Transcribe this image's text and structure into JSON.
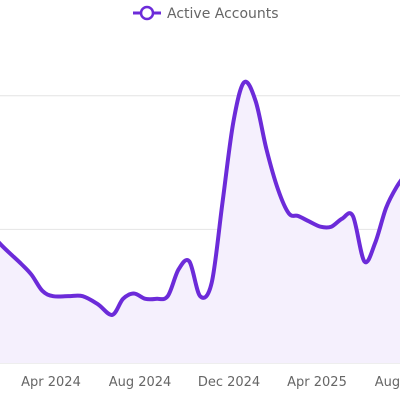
{
  "chart_data": {
    "type": "area",
    "title": "",
    "xlabel": "",
    "ylabel": "",
    "legend": {
      "placement": "top-center",
      "label": "Active Accounts"
    },
    "series": [
      {
        "name": "Active Accounts",
        "x": [
          "2023-12-10",
          "2024-01-01",
          "2024-01-20",
          "2024-02-20",
          "2024-03-05",
          "2024-03-20",
          "2024-04-04",
          "2024-04-25",
          "2024-05-15",
          "2024-06-05",
          "2024-06-25",
          "2024-07-10",
          "2024-07-25",
          "2024-08-10",
          "2024-08-25",
          "2024-09-10",
          "2024-09-25",
          "2024-10-10",
          "2024-10-25",
          "2024-11-10",
          "2024-11-25",
          "2024-12-10",
          "2024-12-25",
          "2025-01-10",
          "2025-01-25",
          "2025-02-10",
          "2025-02-25",
          "2025-03-10",
          "2025-03-25",
          "2025-04-10",
          "2025-04-25",
          "2025-05-10",
          "2025-05-25",
          "2025-06-10",
          "2025-06-25",
          "2025-07-10",
          "2025-07-25",
          "2025-08-10"
        ],
        "values": [
          55,
          52,
          45,
          37,
          33,
          27,
          25,
          25,
          25,
          22,
          18,
          24,
          26,
          24,
          24,
          25,
          35,
          38,
          25,
          30,
          60,
          90,
          105,
          98,
          80,
          65,
          56,
          55,
          53,
          51,
          51,
          54,
          55,
          38,
          45,
          58,
          66,
          72
        ]
      }
    ],
    "x_ticks": [
      "Apr 2024",
      "Aug 2024",
      "Dec 2024",
      "Apr 2025",
      "Aug 2025"
    ],
    "y_gridlines": [
      0,
      50,
      100
    ],
    "y_tick_labels_visible": false,
    "grid": true,
    "line_color": "#6c2bd9",
    "fill_color": "#f5f0fd"
  }
}
